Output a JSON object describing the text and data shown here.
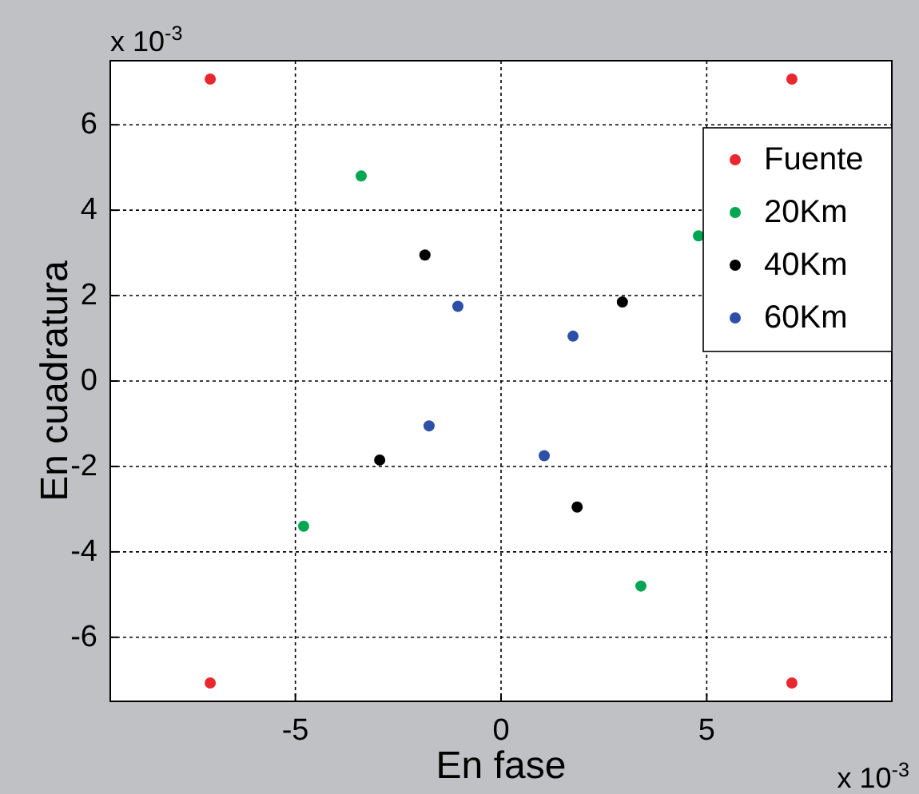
{
  "chart_data": {
    "type": "scatter",
    "xlabel": "En fase",
    "ylabel": "En cuadratura",
    "xlim": [
      -9.5,
      9.5
    ],
    "ylim": [
      -7.5,
      7.5
    ],
    "xticks": [
      -5,
      0,
      5
    ],
    "yticks": [
      -6,
      -4,
      -2,
      0,
      2,
      4,
      6
    ],
    "grid": true,
    "legend": "top right",
    "marker": "circle",
    "annotations": [
      "x 10$^{-3}$",
      "x 10$^{-3}$"
    ],
    "series": [
      {
        "name": "Fuente",
        "color": "#e8282e",
        "x": [
          -7.07,
          7.07,
          7.07,
          -7.07
        ],
        "values": [
          7.07,
          7.07,
          -7.07,
          -7.07
        ]
      },
      {
        "name": "20Km",
        "color": "#00a651",
        "x": [
          -3.4,
          4.8,
          3.4,
          -4.8
        ],
        "values": [
          4.8,
          3.4,
          -4.8,
          -3.4
        ]
      },
      {
        "name": "40Km",
        "color": "#000000",
        "x": [
          -1.85,
          2.95,
          1.85,
          -2.95
        ],
        "values": [
          2.95,
          1.85,
          -2.95,
          -1.85
        ]
      },
      {
        "name": "60Km",
        "color": "#2e4fa8",
        "x": [
          -1.05,
          1.75,
          1.05,
          -1.75
        ],
        "values": [
          1.75,
          1.05,
          -1.75,
          -1.05
        ]
      }
    ]
  }
}
